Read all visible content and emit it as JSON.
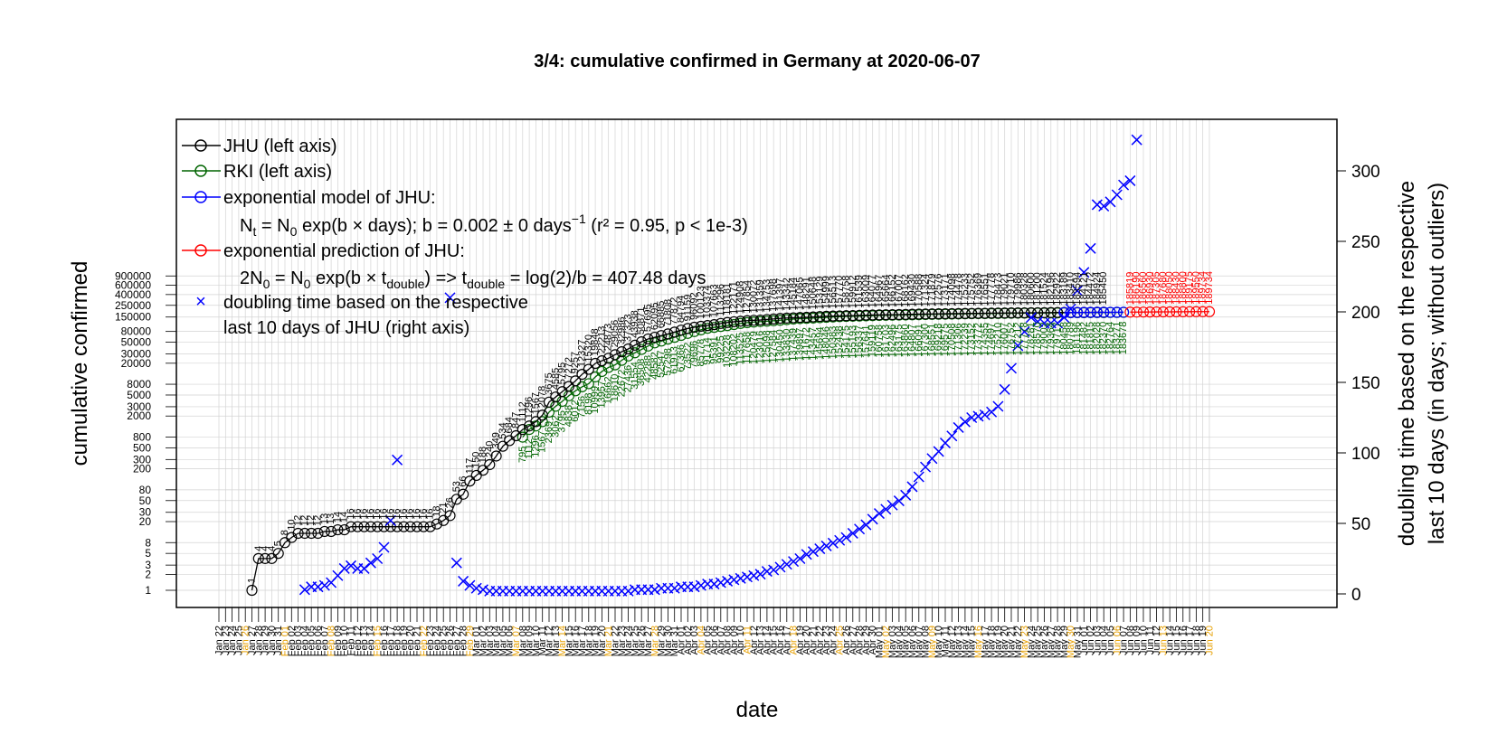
{
  "chart_data": {
    "type": "line",
    "title": "3/4: cumulative confirmed in Germany at 2020-06-07",
    "xlabel": "date",
    "ylabel_left": "cumulative confirmed",
    "ylabel_right_line1": "doubling time based on the respective",
    "ylabel_right_line2": "last 10 days (in days; without outliers)",
    "left_axis": {
      "scale": "log",
      "ticks": [
        1,
        2,
        3,
        5,
        8,
        20,
        30,
        50,
        80,
        200,
        300,
        500,
        800,
        2000,
        3000,
        5000,
        8000,
        20000,
        30000,
        50000,
        80000,
        150000,
        250000,
        400000,
        600000,
        900000
      ],
      "tick_labels": [
        "1",
        "2",
        "3",
        "5",
        "8",
        "20",
        "30",
        "50",
        "80",
        "200",
        "300",
        "500",
        "800",
        "2000",
        "3000",
        "5000",
        "8000",
        "20000",
        "30000",
        "50000",
        "80000",
        "150000",
        "250000",
        "400000",
        "600000",
        "900000"
      ]
    },
    "right_axis": {
      "scale": "linear",
      "ticks": [
        0,
        50,
        100,
        150,
        200,
        250,
        300
      ],
      "tick_labels": [
        "0",
        "50",
        "100",
        "150",
        "200",
        "250",
        "300"
      ]
    },
    "x_axis": {
      "start": "2020-01-22",
      "end": "2020-06-20",
      "highlight_color": "#e69f00",
      "highlight_dates": [
        "Jan 26",
        "Feb 01",
        "Feb 08",
        "Feb 15",
        "Feb 22",
        "Feb 29",
        "Mar 07",
        "Mar 14",
        "Mar 21",
        "Mar 28",
        "Apr 04",
        "Apr 11",
        "Apr 18",
        "Apr 25",
        "May 02",
        "May 09",
        "May 16",
        "May 23",
        "May 30",
        "Jun 06",
        "Jun 13",
        "Jun 20"
      ]
    },
    "grid": true,
    "legend_placement": "top-left",
    "legend": {
      "jhu": "JHU (left axis)",
      "rki": "RKI (left axis)",
      "model": "exponential model of JHU:",
      "model_formula_1": "N",
      "model_formula_sub_t": "t",
      "model_formula_2": " = N",
      "model_formula_sub_0": "0",
      "model_formula_3": " exp(b × days); b = 0.002 ± 0 days",
      "model_formula_sup": "−1",
      "model_formula_4": " (r² = 0.95, p < 1e-3)",
      "prediction": "exponential prediction of JHU:",
      "pred_formula_1": "2N",
      "pred_formula_sub_0a": "0",
      "pred_formula_2": " = N",
      "pred_formula_sub_0b": "0",
      "pred_formula_3": " exp(b × t",
      "pred_formula_sub_d1": "double",
      "pred_formula_4": ") => t",
      "pred_formula_sub_d2": "double",
      "pred_formula_5": " = log(2)/b = 407.48 days",
      "doubling_line1": "doubling time based on the respective",
      "doubling_line2": "last 10 days of JHU (right axis)"
    },
    "colors": {
      "jhu": "#000000",
      "rki": "#006400",
      "model": "#0000ff",
      "prediction": "#ff0000",
      "doubling": "#0000ff",
      "grid": "#d3d3d3"
    },
    "series": [
      {
        "name": "JHU (left axis)",
        "axis": "left",
        "start": "2020-01-27",
        "values": [
          1,
          4,
          4,
          4,
          5,
          8,
          10,
          12,
          12,
          12,
          12,
          13,
          13,
          14,
          14,
          16,
          16,
          16,
          16,
          16,
          16,
          16,
          16,
          16,
          16,
          16,
          16,
          16,
          18,
          21,
          26,
          53,
          66,
          117,
          150,
          188,
          240,
          349,
          534,
          684,
          847,
          1112,
          1296,
          1567,
          2078,
          3675,
          4585,
          5795,
          7272,
          9257,
          12327,
          15320,
          19848,
          22213,
          24873,
          29056,
          32986,
          37323,
          43938,
          50871,
          57695,
          62095,
          66885,
          71808,
          77872,
          84794,
          91159,
          96092,
          100123,
          103374,
          107663,
          113296,
          118181,
          122171,
          124908,
          127854,
          130072,
          131359,
          134753,
          137698,
          141397,
          143342,
          145184,
          147065,
          148291,
          150648,
          153129,
          154999,
          156513,
          157770,
          158758,
          159912,
          161539,
          163009,
          164077,
          164967,
          165664,
          166152,
          167007,
          168162,
          169430,
          170588,
          171324,
          171879,
          172576,
          173171,
          174098,
          174478,
          175233,
          175752,
          176369,
          176551,
          177778,
          178473,
          179021,
          179710,
          179986,
          180328,
          180600,
          181200,
          181524,
          182196,
          182922,
          183189,
          183410,
          183594,
          184121,
          184472,
          184924,
          185450
        ]
      },
      {
        "name": "RKI (left axis)",
        "axis": "left",
        "start": "2020-03-08",
        "values": [
          795,
          1112,
          1296,
          1567,
          2369,
          3062,
          3795,
          4838,
          6012,
          7156,
          8198,
          10999,
          13957,
          16662,
          18610,
          22672,
          27436,
          31554,
          36508,
          42288,
          48582,
          52547,
          57298,
          61913,
          67366,
          73522,
          79696,
          85778,
          91714,
          95391,
          99225,
          103228,
          108202,
          113525,
          117658,
          120479,
          123016,
          125098,
          127584,
          130450,
          133830,
          137439,
          139897,
          141672,
          143457,
          145694,
          148046,
          150383,
          152438,
          154175,
          155193,
          156337,
          157641,
          159119,
          160758,
          161703,
          162496,
          163175,
          163860,
          164807,
          166091,
          167300,
          168551,
          169218,
          169575,
          170508,
          171306,
          172239,
          173152,
          173772,
          174355,
          174697,
          175210,
          176007,
          176752,
          177212,
          177778,
          178281,
          178570,
          179002,
          179364,
          179717,
          180458,
          180789,
          181196,
          181482,
          181815,
          182028,
          182370,
          182764,
          183271,
          183678
        ]
      },
      {
        "name": "exponential model of JHU",
        "axis": "left",
        "start": "2020-05-29",
        "end": "2020-06-07",
        "values": [
          182000,
          182400,
          182800,
          183200,
          183600,
          184000,
          184300,
          184700,
          185100,
          185450
        ]
      },
      {
        "name": "exponential prediction of JHU",
        "axis": "left",
        "start": "2020-06-08",
        "values": [
          185819,
          186190,
          186560,
          186930,
          187305,
          187680,
          188050,
          188430,
          188800,
          189175,
          189550,
          189734,
          189734
        ]
      },
      {
        "name": "doubling time based on the respective last 10 days of JHU (right axis)",
        "axis": "right",
        "segments": [
          {
            "start": "2020-02-04",
            "values": [
              3,
              5,
              5,
              6,
              8,
              13,
              18,
              20,
              18,
              18,
              22,
              25,
              33,
              52,
              95
            ]
          },
          {
            "start": "2020-02-26",
            "values": [
              210,
              22,
              9,
              6,
              4,
              3,
              2,
              2,
              2,
              2,
              2,
              2,
              2,
              2,
              2,
              2,
              2,
              2,
              2,
              2,
              2,
              2,
              2,
              2,
              2,
              2,
              2,
              2,
              3,
              3,
              3,
              3,
              4,
              4,
              4,
              5,
              5,
              5,
              6,
              7,
              7,
              8,
              9,
              10,
              11,
              12,
              13,
              14,
              16,
              17,
              19,
              21,
              23,
              25,
              28,
              30,
              32,
              34,
              36,
              38,
              40,
              43,
              46,
              49,
              53,
              57,
              60,
              63,
              66,
              70,
              76,
              83,
              90,
              96,
              101,
              107,
              112,
              118,
              122,
              125,
              126,
              127,
              129,
              133,
              145,
              160,
              176,
              186,
              196,
              193,
              192,
              192,
              192,
              196,
              202,
              215,
              228,
              245,
              276,
              275,
              278,
              283,
              290,
              293,
              322
            ]
          }
        ]
      }
    ]
  }
}
